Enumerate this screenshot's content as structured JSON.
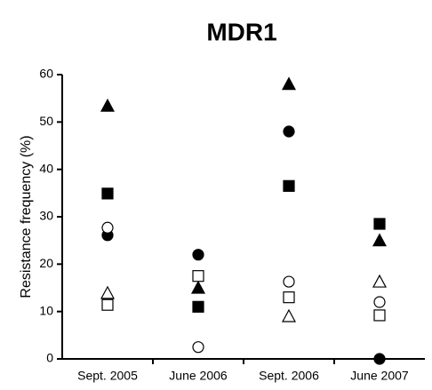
{
  "chart_data": {
    "type": "scatter",
    "title": "MDR1",
    "y_label": "Resistance frequency (%)",
    "categories": [
      "Sept. 2005",
      "June 2006",
      "Sept. 2006",
      "June 2007"
    ],
    "ylim": [
      0,
      60
    ],
    "yticks": [
      0,
      10,
      20,
      30,
      40,
      50,
      60
    ],
    "grid": false,
    "series": [
      {
        "marker": "triangle",
        "filled": true,
        "color": "#000000",
        "values": [
          53.4,
          15,
          58,
          25
        ]
      },
      {
        "marker": "square",
        "filled": true,
        "color": "#000000",
        "values": [
          34.9,
          11,
          36.5,
          28.5
        ]
      },
      {
        "marker": "circle",
        "filled": true,
        "color": "#000000",
        "values": [
          26.1,
          22,
          48,
          0
        ]
      },
      {
        "marker": "circle",
        "filled": false,
        "color": "#000000",
        "values": [
          27.7,
          2.5,
          16.3,
          12
        ]
      },
      {
        "marker": "triangle",
        "filled": false,
        "color": "#000000",
        "values": [
          13.9,
          null,
          9,
          16.3
        ]
      },
      {
        "marker": "square",
        "filled": false,
        "color": "#000000",
        "values": [
          11.4,
          17.5,
          13,
          9.2
        ]
      }
    ]
  }
}
